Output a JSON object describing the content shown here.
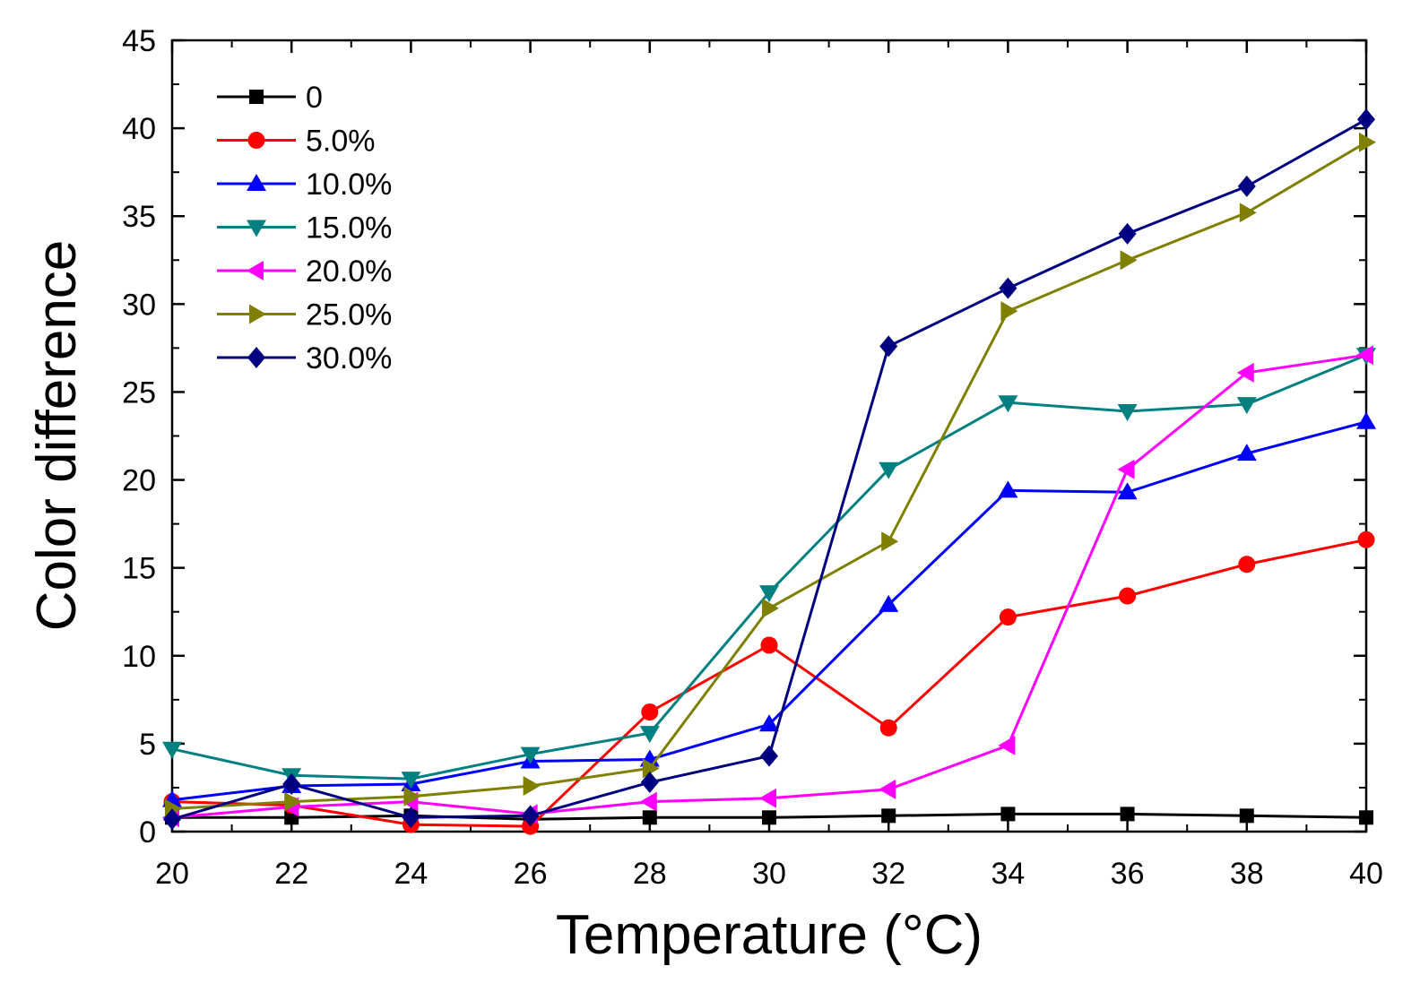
{
  "chart_data": {
    "type": "line",
    "title": "",
    "xlabel": "Temperature (°C)",
    "ylabel": "Color difference",
    "xlim": [
      20,
      40
    ],
    "ylim": [
      0,
      45
    ],
    "xticks": [
      20,
      22,
      24,
      26,
      28,
      30,
      32,
      34,
      36,
      38,
      40
    ],
    "yticks": [
      0,
      5,
      10,
      15,
      20,
      25,
      30,
      35,
      40,
      45
    ],
    "grid": false,
    "legend_position": "top-left",
    "x": [
      20,
      22,
      24,
      26,
      28,
      30,
      32,
      34,
      36,
      38,
      40
    ],
    "series": [
      {
        "name": "0",
        "color": "#000000",
        "marker": "square",
        "values": [
          0.8,
          0.8,
          0.9,
          0.7,
          0.8,
          0.8,
          0.9,
          1.0,
          1.0,
          0.9,
          0.8
        ]
      },
      {
        "name": "5.0%",
        "color": "#ff0000",
        "marker": "circle",
        "values": [
          1.7,
          1.5,
          0.4,
          0.3,
          6.8,
          10.6,
          5.9,
          12.2,
          13.4,
          15.2,
          16.6
        ]
      },
      {
        "name": "10.0%",
        "color": "#0000ff",
        "marker": "triangle-up",
        "values": [
          1.8,
          2.6,
          2.7,
          4.0,
          4.1,
          6.1,
          12.9,
          19.4,
          19.3,
          21.5,
          23.3
        ]
      },
      {
        "name": "15.0%",
        "color": "#008080",
        "marker": "triangle-down",
        "values": [
          4.7,
          3.2,
          3.0,
          4.4,
          5.6,
          13.6,
          20.6,
          24.4,
          23.9,
          24.3,
          27.1
        ]
      },
      {
        "name": "20.0%",
        "color": "#ff00ff",
        "marker": "triangle-left",
        "values": [
          0.8,
          1.4,
          1.7,
          1.0,
          1.7,
          1.9,
          2.4,
          4.9,
          20.6,
          26.1,
          27.1
        ]
      },
      {
        "name": "25.0%",
        "color": "#808000",
        "marker": "triangle-right",
        "values": [
          1.3,
          1.7,
          2.0,
          2.6,
          3.6,
          12.7,
          16.5,
          29.6,
          32.5,
          35.2,
          39.2
        ]
      },
      {
        "name": "30.0%",
        "color": "#000080",
        "marker": "diamond",
        "values": [
          0.7,
          2.7,
          0.8,
          0.9,
          2.8,
          4.3,
          27.6,
          30.9,
          34.0,
          36.7,
          40.5
        ]
      }
    ]
  }
}
